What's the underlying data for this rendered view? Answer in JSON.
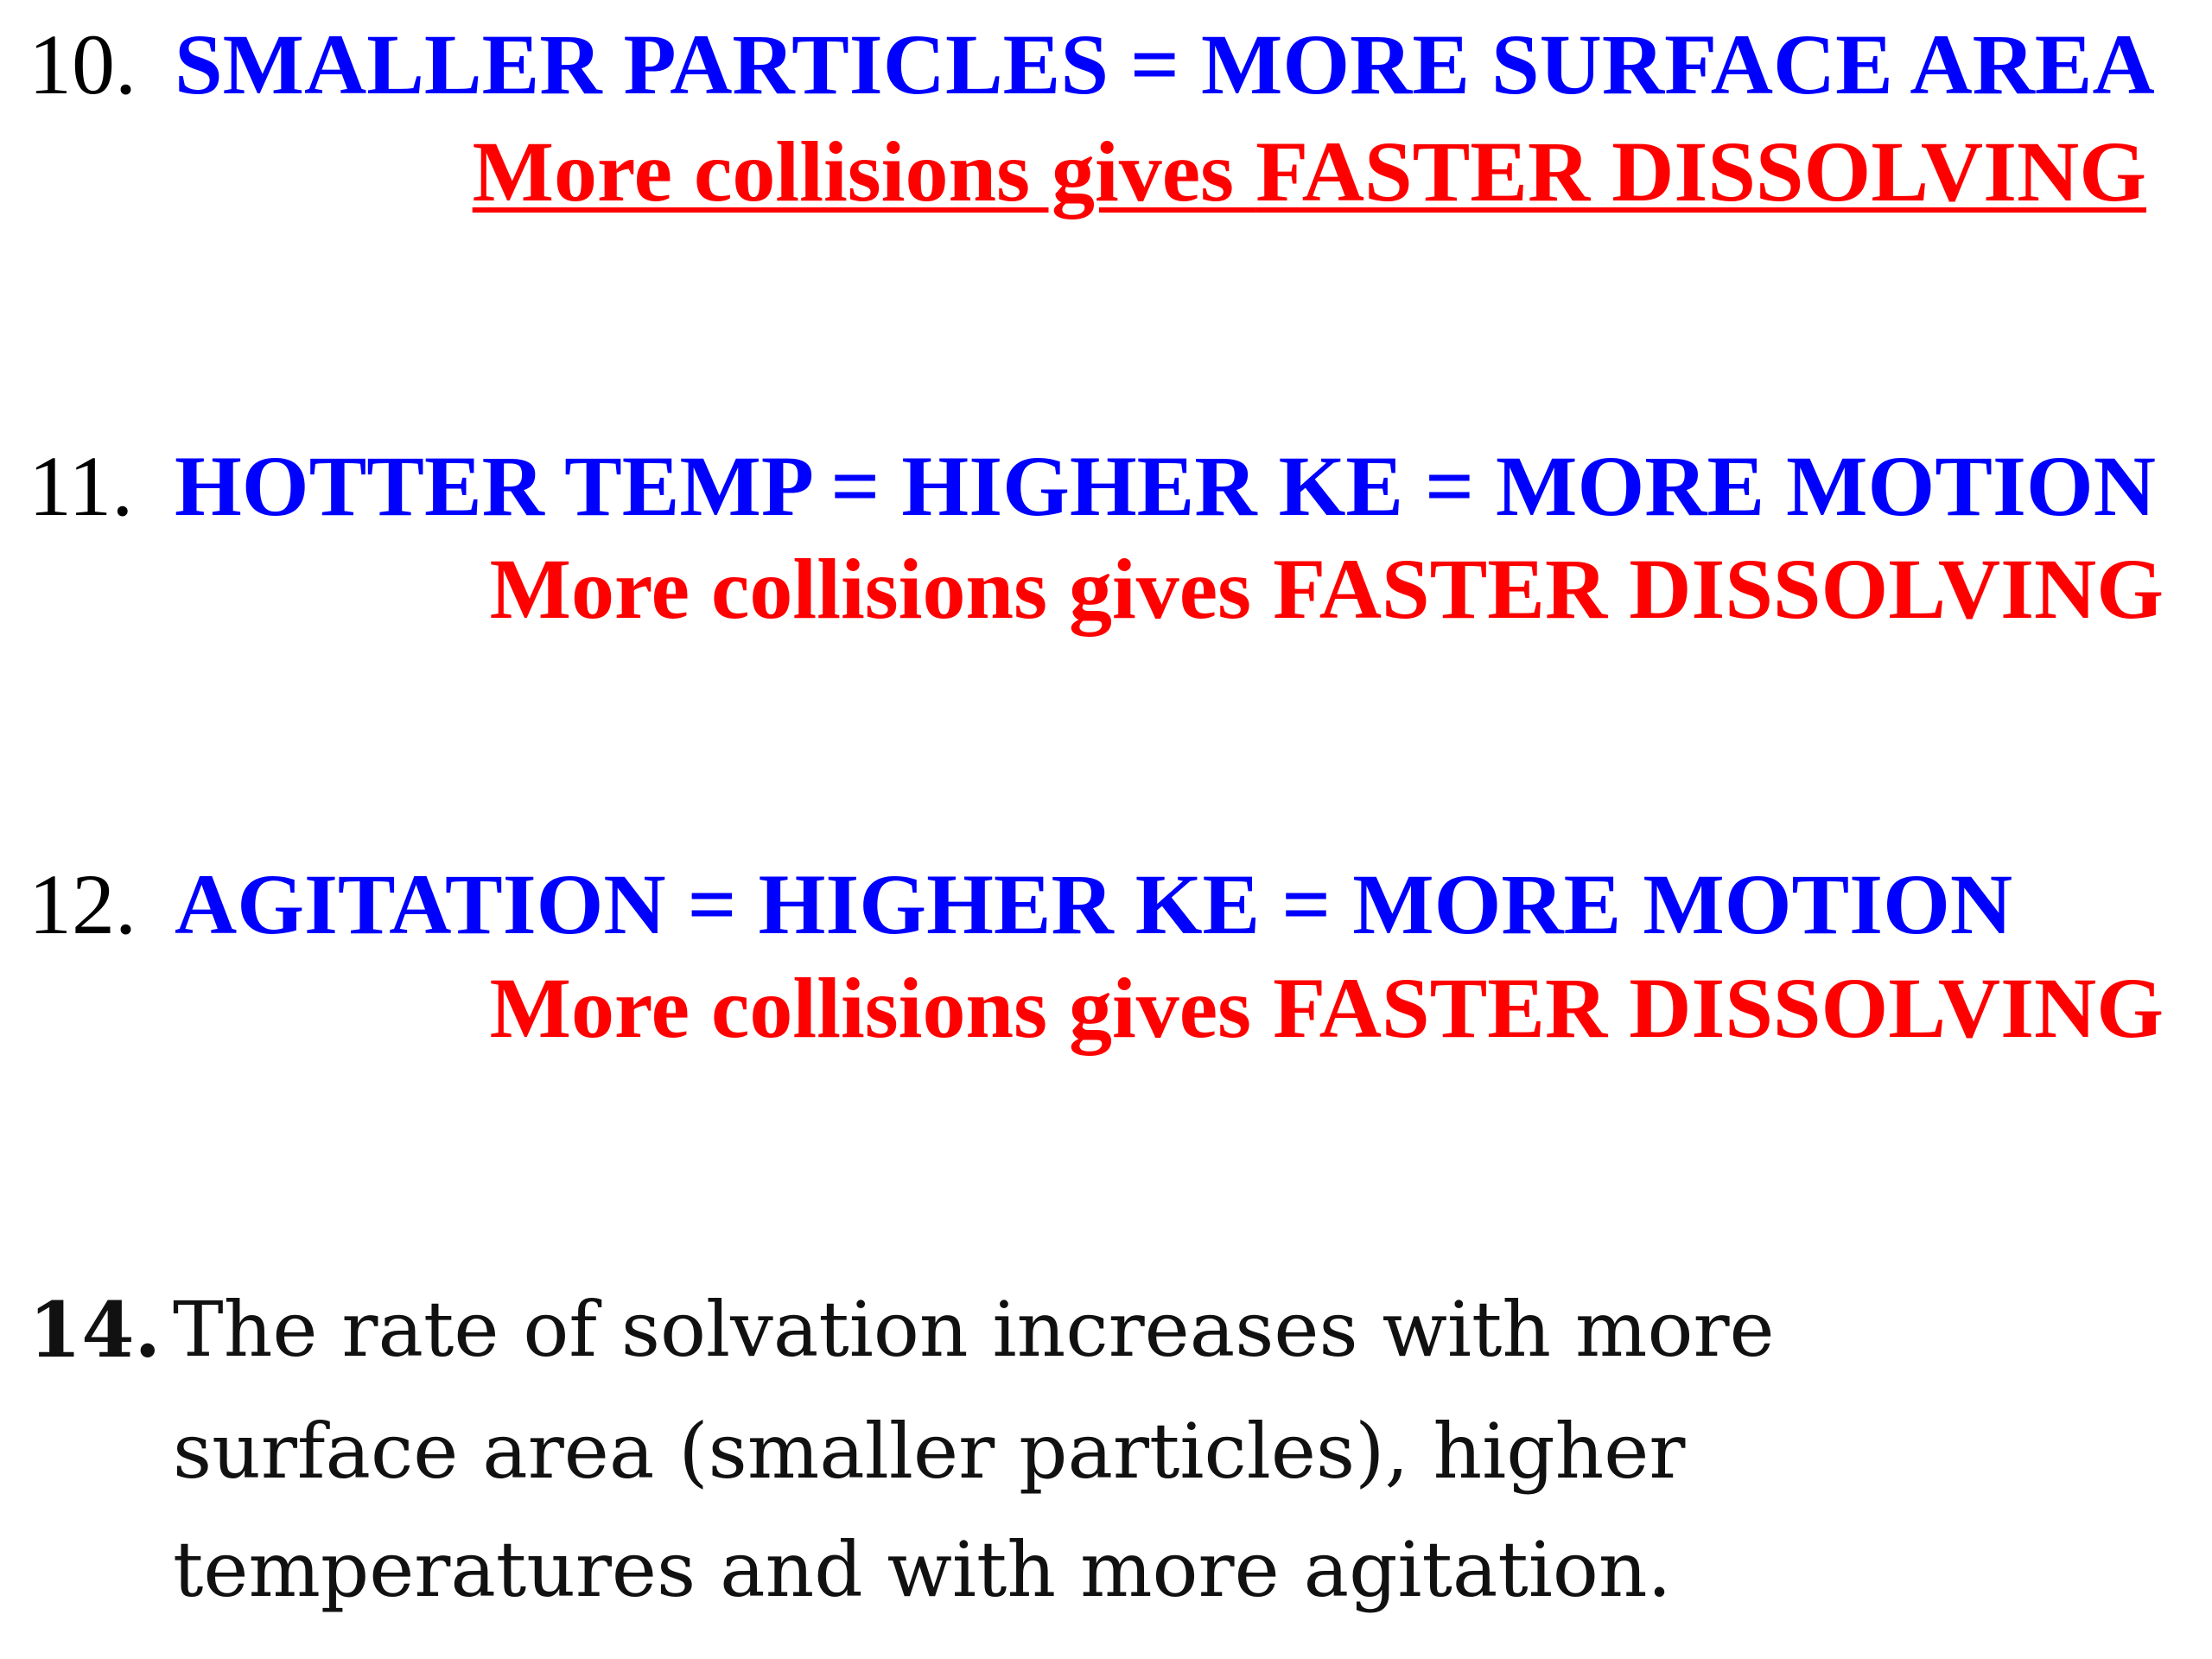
{
  "items": [
    {
      "number": "10.",
      "main": "SMALLER PARTICLES = MORE SURFACE AREA",
      "sub_plain": "More collisions gives ",
      "sub_emph": "FASTER DISSOLVING"
    },
    {
      "number": "11.",
      "main": "HOTTER TEMP = HIGHER KE = MORE MOTION",
      "sub_plain": "More collisions gives ",
      "sub_emph": "FASTER DISSOLVING"
    },
    {
      "number": "12.",
      "main": "AGITATION = HIGHER KE = MORE MOTION",
      "sub_plain": "More collisions gives ",
      "sub_emph": "FASTER DISSOLVING"
    }
  ],
  "summary": {
    "number": "14.",
    "lines": [
      "The rate of solvation increases with more",
      "surface area (smaller particles), higher",
      "temperatures and with more agitation."
    ]
  }
}
